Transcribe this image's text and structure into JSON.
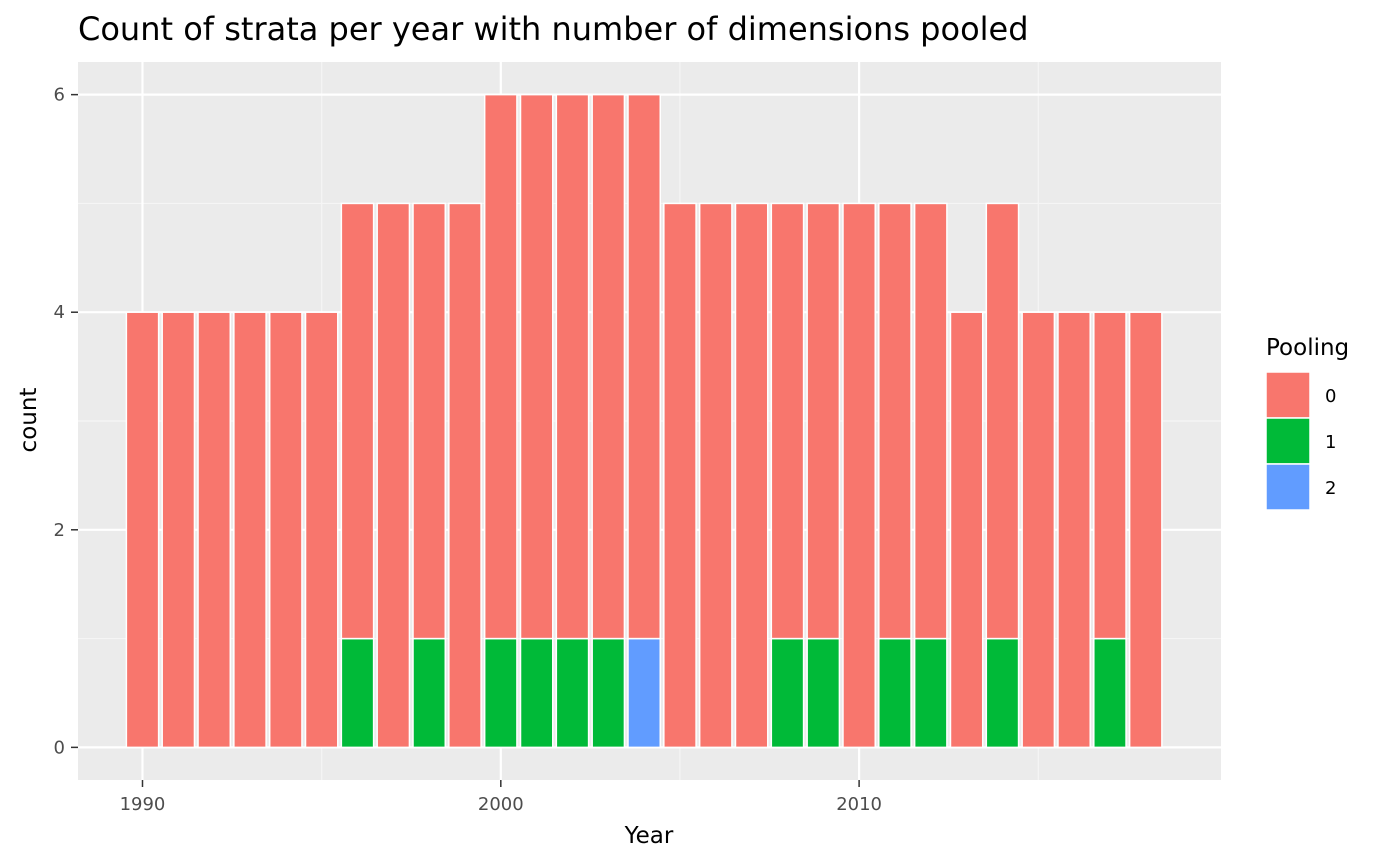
{
  "colors": {
    "panel_background": "#ebebeb",
    "grid_major": "#ffffff",
    "grid_minor": "#f5f5f5",
    "tick": "#333333",
    "bar_outline": "#ffffff"
  },
  "chart_data": {
    "type": "bar",
    "stacked": true,
    "title": "Count of strata per year with number of dimensions pooled",
    "xlabel": "Year",
    "ylabel": "count",
    "x": [
      1990,
      1991,
      1992,
      1993,
      1994,
      1995,
      1996,
      1997,
      1998,
      1999,
      2000,
      2001,
      2002,
      2003,
      2004,
      2005,
      2006,
      2007,
      2008,
      2009,
      2010,
      2011,
      2012,
      2013,
      2014,
      2015,
      2016,
      2017,
      2018
    ],
    "xlim": [
      1988.2,
      2020.1
    ],
    "ylim": [
      -0.3,
      6.3
    ],
    "x_ticks": [
      1990,
      2000,
      2010
    ],
    "y_ticks": [
      0,
      2,
      4,
      6
    ],
    "grid": true,
    "legend": {
      "title": "Pooling",
      "position": "right"
    },
    "series": [
      {
        "name": "0",
        "color": "#F8766D",
        "values": [
          4,
          4,
          4,
          4,
          4,
          4,
          4,
          5,
          4,
          5,
          5,
          5,
          5,
          5,
          5,
          5,
          5,
          5,
          4,
          4,
          5,
          4,
          4,
          4,
          4,
          4,
          4,
          3,
          4
        ]
      },
      {
        "name": "1",
        "color": "#00BA38",
        "values": [
          0,
          0,
          0,
          0,
          0,
          0,
          1,
          0,
          1,
          0,
          1,
          1,
          1,
          1,
          0,
          0,
          0,
          0,
          1,
          1,
          0,
          1,
          1,
          0,
          1,
          0,
          0,
          1,
          0
        ]
      },
      {
        "name": "2",
        "color": "#619CFF",
        "values": [
          0,
          0,
          0,
          0,
          0,
          0,
          0,
          0,
          0,
          0,
          0,
          0,
          0,
          0,
          1,
          0,
          0,
          0,
          0,
          0,
          0,
          0,
          0,
          0,
          0,
          0,
          0,
          0,
          0
        ]
      }
    ]
  }
}
